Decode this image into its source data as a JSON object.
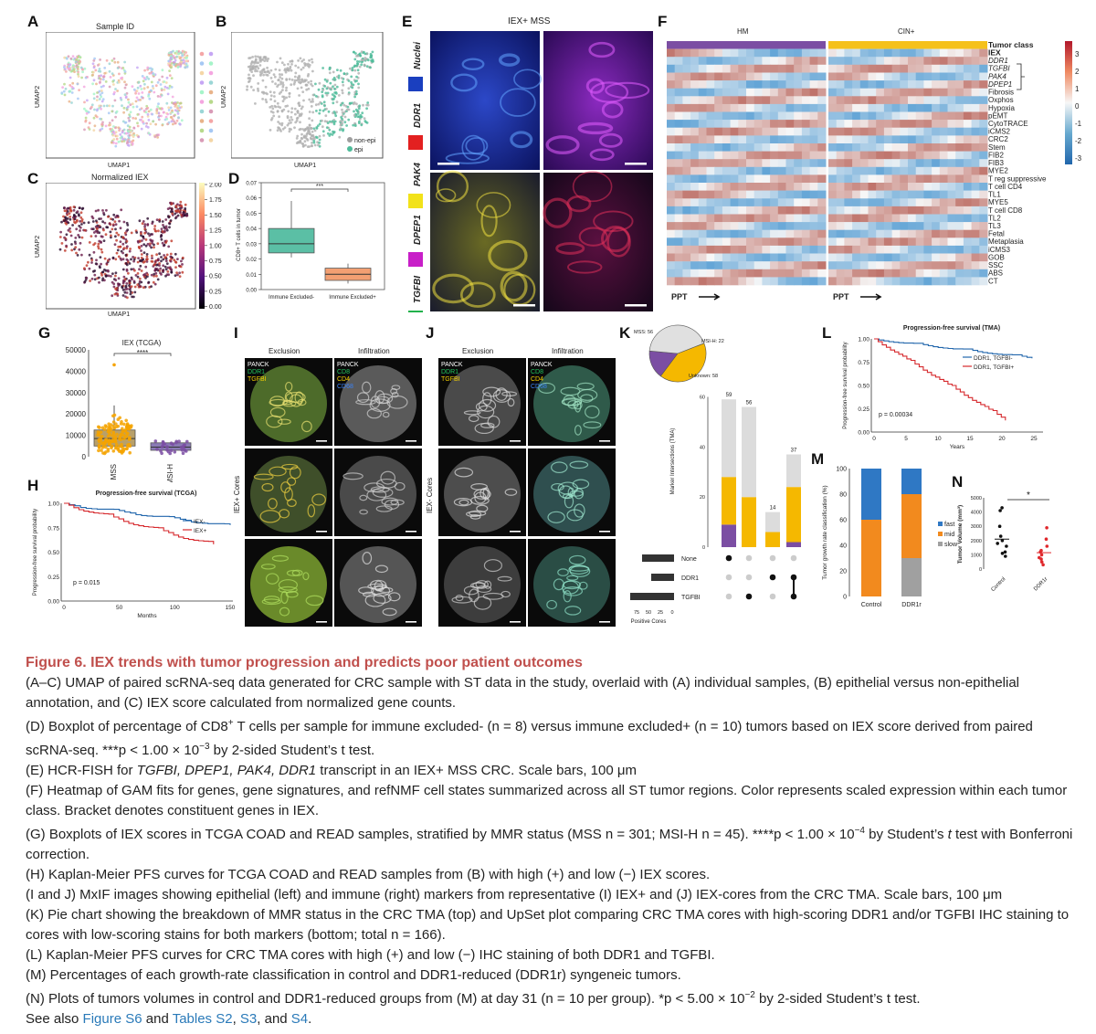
{
  "panels": {
    "A": {
      "label": "A",
      "title": "Sample ID",
      "xlabel": "UMAP1",
      "ylabel": "UMAP2"
    },
    "B": {
      "label": "B",
      "xlabel": "UMAP1",
      "ylabel": "UMAP2",
      "legend": [
        "non-epi",
        "epi"
      ]
    },
    "C": {
      "label": "C",
      "title": "Normalized IEX",
      "xlabel": "UMAP1",
      "ylabel": "UMAP2",
      "colorbar_ticks": [
        "2.00",
        "1.75",
        "1.50",
        "1.25",
        "1.00",
        "0.75",
        "0.50",
        "0.25",
        "0.00"
      ]
    },
    "D": {
      "label": "D",
      "ylabel": "CD8+ T cells in tumor",
      "yticks": [
        "0.07",
        "0.06",
        "0.05",
        "0.04",
        "0.03",
        "0.02",
        "0.01",
        "0.00"
      ],
      "xticks": [
        "Immune Excluded-",
        "Immune Excluded+"
      ],
      "sig": "***"
    },
    "E": {
      "label": "E",
      "title": "IEX+ MSS",
      "channels": [
        "Nuclei",
        "DDR1",
        "PAK4",
        "DPEP1",
        "TGFBI"
      ],
      "colors": [
        "#1a3fbf",
        "#e32020",
        "#f2e21a",
        "#c81fc8",
        "#22b14c"
      ]
    },
    "F": {
      "label": "F",
      "groups": [
        "HM",
        "CIN+"
      ],
      "rows": [
        "Tumor class",
        "IEX",
        "DDR1",
        "TGFBI",
        "PAK4",
        "DPEP1",
        "Fibrosis",
        "Oxphos",
        "Hypoxia",
        "pEMT",
        "CytoTRACE",
        "iCMS2",
        "CRC2",
        "Stem",
        "FIB2",
        "FIB3",
        "MYE2",
        "T reg suppressive",
        "T cell CD4",
        "TL1",
        "MYE5",
        "T cell CD8",
        "TL2",
        "TL3",
        "Fetal",
        "Metaplasia",
        "iCMS3",
        "GOB",
        "SSC",
        "ABS",
        "CT"
      ],
      "colorbar_ticks": [
        "3",
        "2",
        "1",
        "0",
        "-1",
        "-2",
        "-3"
      ],
      "ppt": "PPT"
    },
    "G": {
      "label": "G",
      "title": "IEX (TCGA)",
      "yticks": [
        "50000",
        "40000",
        "30000",
        "20000",
        "10000",
        "0"
      ],
      "xticks": [
        "MSS",
        "MSI-H"
      ],
      "sig": "****"
    },
    "H": {
      "label": "H",
      "title": "Progression-free survival (TCGA)",
      "ylabel": "Progression-free survival probability",
      "yticks": [
        "1.00",
        "0.75",
        "0.50",
        "0.25",
        "0.00"
      ],
      "xticks": [
        "0",
        "50",
        "100",
        "150"
      ],
      "xlabel": "Months",
      "legend": [
        "IEX-",
        "IEX+"
      ],
      "pvalue": "p = 0.015"
    },
    "I": {
      "label": "I",
      "cols": [
        "Exclusion",
        "Infiltration"
      ],
      "left_markers": [
        "PANCK",
        "DDR1",
        "TGFBI"
      ],
      "right_markers": [
        "PANCK",
        "CD8",
        "CD4",
        "CD68"
      ],
      "row_label": "IEX+ Cores"
    },
    "J": {
      "label": "J",
      "cols": [
        "Exclusion",
        "Infiltration"
      ],
      "left_markers": [
        "PANCK",
        "DDR1",
        "TGFBI"
      ],
      "right_markers": [
        "PANCK",
        "CD8",
        "CD4",
        "CD68"
      ],
      "row_label": "IEX- Cores"
    },
    "K": {
      "label": "K",
      "pie": [
        {
          "name": "MSS: 56",
          "value": 56,
          "color": "#f5b800"
        },
        {
          "name": "MSI-H: 22",
          "value": 22,
          "color": "#7b4ea3"
        },
        {
          "name": "Unknown: 58",
          "value": 58,
          "color": "#e0e0e0"
        }
      ],
      "ylabel": "Marker Intersections (TMA)",
      "yticks": [
        "60",
        "40",
        "20",
        "0"
      ],
      "bar_totals": [
        "59",
        "56",
        "14",
        "37"
      ],
      "sets": [
        "None",
        "DDR1",
        "TGFBI"
      ],
      "set_axis": [
        "75",
        "50",
        "25",
        "0"
      ],
      "set_xlabel": "Positive Cores"
    },
    "L": {
      "label": "L",
      "title": "Progression-free survival (TMA)",
      "ylabel": "Progression-free survival probability",
      "yticks": [
        "1.00",
        "0.75",
        "0.50",
        "0.25",
        "0.00"
      ],
      "xticks": [
        "0",
        "5",
        "10",
        "15",
        "20",
        "25"
      ],
      "xlabel": "Years",
      "legend": [
        "DDR1, TGFBI-",
        "DDR1, TGFBI+"
      ],
      "pvalue": "p = 0.00034"
    },
    "M": {
      "label": "M",
      "ylabel": "Tumor growth rate classification (%)",
      "yticks": [
        "100",
        "80",
        "60",
        "40",
        "20",
        "0"
      ],
      "xticks": [
        "Control",
        "DDR1r"
      ],
      "legend": [
        "fast",
        "mid",
        "slow"
      ]
    },
    "N": {
      "label": "N",
      "ylabel": "Tumor Volume (mm³)",
      "yticks": [
        "5000",
        "4000",
        "3000",
        "2000",
        "1000",
        "0"
      ],
      "xticks": [
        "Control",
        "DDR1r"
      ],
      "sig": "*"
    }
  },
  "caption": {
    "title": "Figure 6.  IEX trends with tumor progression and predicts poor patient outcomes",
    "l1": "(A–C) UMAP of paired scRNA-seq data generated for CRC sample with ST data in the study, overlaid with (A) individual samples, (B) epithelial versus non-epithelial annotation, and (C) IEX score calculated from normalized gene counts.",
    "l2a": "(D) Boxplot of percentage of CD8",
    "l2sup": "+",
    "l2b": " T cells per sample for immune excluded- (n = 8) versus immune excluded+ (n = 10) tumors based on IEX score derived from paired scRNA-seq. ***p < 1.00 × 10",
    "l2sup2": "−3",
    "l2c": " by 2-sided Student’s t test.",
    "l3a": "(E) HCR-FISH for ",
    "l3i": "TGFBI, DPEP1, PAK4, DDR1",
    "l3b": " transcript in an IEX+ MSS CRC. Scale bars, 100 μm",
    "l4": "(F) Heatmap of GAM fits for genes, gene signatures, and refNMF cell states summarized across all ST tumor regions. Color represents scaled expression within each tumor class. Bracket denotes constituent genes in IEX.",
    "l5a": "(G) Boxplots of IEX scores in TCGA COAD and READ samples, stratified by MMR status (MSS n = 301; MSI-H n = 45). ****p < 1.00 × 10",
    "l5sup": "−4",
    "l5b": " by Student’s ",
    "l5i": "t",
    "l5c": " test with Bonferroni correction.",
    "l6": "(H) Kaplan-Meier PFS curves for TCGA COAD and READ samples from (B) with high (+) and low (−) IEX scores.",
    "l7": "(I and J) MxIF images showing epithelial (left) and immune (right) markers from representative (I) IEX+ and (J) IEX-cores from the CRC TMA. Scale bars, 100 μm",
    "l8": "(K) Pie chart showing the breakdown of MMR status in the CRC TMA (top) and UpSet plot comparing CRC TMA cores with high-scoring DDR1 and/or TGFBI IHC staining to cores with low-scoring stains for both markers (bottom; total n = 166).",
    "l9": "(L) Kaplan-Meier PFS curves for CRC TMA cores with high (+) and low (−) IHC staining of both DDR1 and TGFBI.",
    "l10": "(M) Percentages of each growth-rate classification in control and DDR1-reduced (DDR1r) syngeneic tumors.",
    "l11a": "(N) Plots of tumors volumes in control and DDR1-reduced groups from (M) at day 31 (n = 10 per group). *p < 5.00 × 10",
    "l11sup": "−2",
    "l11b": " by 2-sided Student’s t test.",
    "seealso": "See also ",
    "link1": "Figure S6",
    "and1": " and ",
    "link2": "Tables S2",
    "comma": ", ",
    "link3": "S3",
    "and2": ", and ",
    "link4": "S4",
    "period": "."
  }
}
